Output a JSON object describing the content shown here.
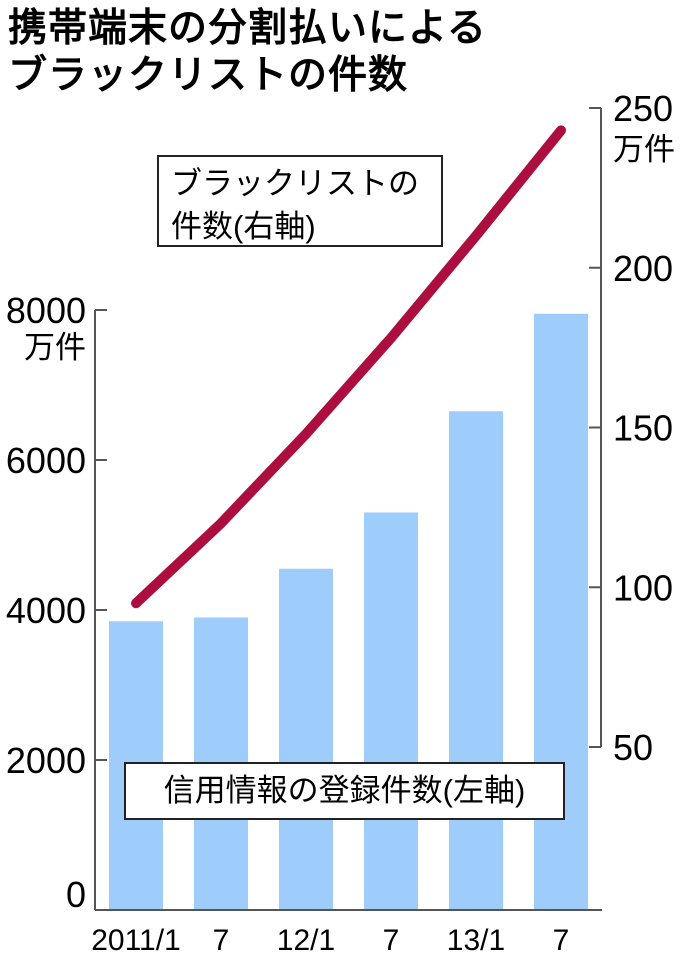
{
  "title": {
    "line1": "携帯端末の分割払いによる",
    "line2": "ブラックリストの件数"
  },
  "annotations": {
    "line_label": [
      "ブラックリストの",
      "件数(右軸)"
    ],
    "bar_label": "信用情報の登録件数(左軸)"
  },
  "colors": {
    "bar": "#9ECDFB",
    "line": "#AB0E3F",
    "axis": "#555555",
    "text": "#000000"
  },
  "chart_data": {
    "type": "bar+line",
    "categories": [
      "2011/1",
      "7",
      "12/1",
      "7",
      "13/1",
      "7"
    ],
    "series": [
      {
        "name": "信用情報の登録件数",
        "type": "bar",
        "axis": "left",
        "unit": "万件",
        "values": [
          3850,
          3900,
          4550,
          5300,
          6650,
          7950
        ]
      },
      {
        "name": "ブラックリストの件数",
        "type": "line",
        "axis": "right",
        "unit": "万件",
        "values": [
          95,
          120,
          148,
          178,
          210,
          243
        ]
      }
    ],
    "axes": {
      "left": {
        "unit": "万件",
        "ticks": [
          0,
          2000,
          4000,
          6000,
          8000
        ],
        "range": [
          0,
          8000
        ]
      },
      "right": {
        "unit": "万件",
        "ticks": [
          50,
          100,
          150,
          200,
          250
        ],
        "range": [
          50,
          250
        ]
      }
    },
    "grid": false,
    "legend": "in-plot label boxes"
  }
}
